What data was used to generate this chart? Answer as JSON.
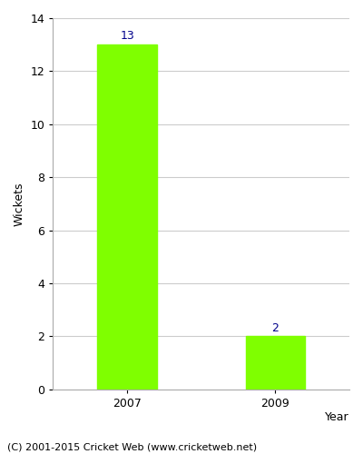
{
  "categories": [
    "2007",
    "2009"
  ],
  "values": [
    13,
    2
  ],
  "bar_color": "#7FFF00",
  "bar_edge_color": "#7FFF00",
  "ylabel": "Wickets",
  "xlabel": "Year",
  "ylim": [
    0,
    14
  ],
  "yticks": [
    0,
    2,
    4,
    6,
    8,
    10,
    12,
    14
  ],
  "label_color": "#00008B",
  "label_fontsize": 9,
  "axis_label_fontsize": 9,
  "tick_fontsize": 9,
  "footer_text": "(C) 2001-2015 Cricket Web (www.cricketweb.net)",
  "footer_fontsize": 8,
  "background_color": "#ffffff",
  "grid_color": "#cccccc",
  "bar_width": 0.4
}
